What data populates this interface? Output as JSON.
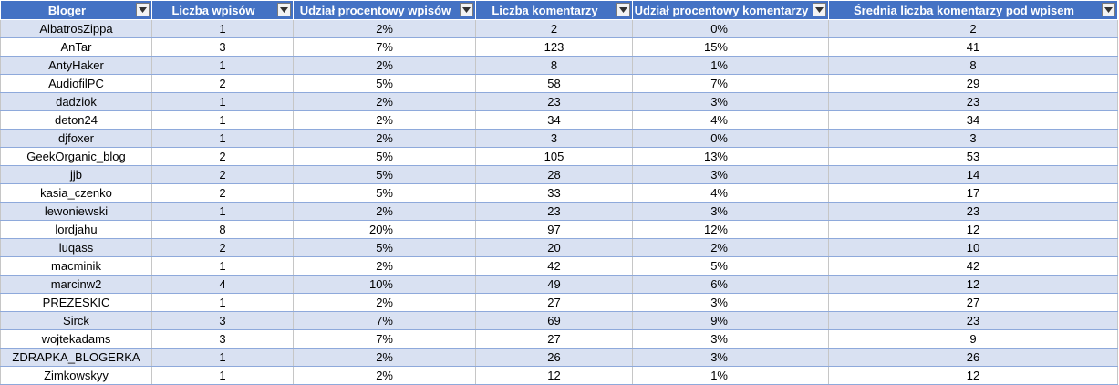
{
  "columns": [
    {
      "label": "Bloger"
    },
    {
      "label": "Liczba wpisów"
    },
    {
      "label": "Udział procentowy wpisów"
    },
    {
      "label": "Liczba komentarzy"
    },
    {
      "label": "Udział procentowy komentarzy"
    },
    {
      "label": "Średnia liczba komentarzy pod wpisem"
    }
  ],
  "icons": {
    "filter": "dropdown-filter-icon"
  },
  "colors": {
    "header_bg": "#4472c4",
    "band_bg": "#d9e1f2",
    "header_text": "#ffffff"
  },
  "rows": [
    [
      "AlbatrosZippa",
      "1",
      "2%",
      "2",
      "0%",
      "2"
    ],
    [
      "AnTar",
      "3",
      "7%",
      "123",
      "15%",
      "41"
    ],
    [
      "AntyHaker",
      "1",
      "2%",
      "8",
      "1%",
      "8"
    ],
    [
      "AudiofilPC",
      "2",
      "5%",
      "58",
      "7%",
      "29"
    ],
    [
      "dadziok",
      "1",
      "2%",
      "23",
      "3%",
      "23"
    ],
    [
      "deton24",
      "1",
      "2%",
      "34",
      "4%",
      "34"
    ],
    [
      "djfoxer",
      "1",
      "2%",
      "3",
      "0%",
      "3"
    ],
    [
      "GeekOrganic_blog",
      "2",
      "5%",
      "105",
      "13%",
      "53"
    ],
    [
      "jjb",
      "2",
      "5%",
      "28",
      "3%",
      "14"
    ],
    [
      "kasia_czenko",
      "2",
      "5%",
      "33",
      "4%",
      "17"
    ],
    [
      "lewoniewski",
      "1",
      "2%",
      "23",
      "3%",
      "23"
    ],
    [
      "lordjahu",
      "8",
      "20%",
      "97",
      "12%",
      "12"
    ],
    [
      "luqass",
      "2",
      "5%",
      "20",
      "2%",
      "10"
    ],
    [
      "macminik",
      "1",
      "2%",
      "42",
      "5%",
      "42"
    ],
    [
      "marcinw2",
      "4",
      "10%",
      "49",
      "6%",
      "12"
    ],
    [
      "PREZESKIC",
      "1",
      "2%",
      "27",
      "3%",
      "27"
    ],
    [
      "Sirck",
      "3",
      "7%",
      "69",
      "9%",
      "23"
    ],
    [
      "wojtekadams",
      "3",
      "7%",
      "27",
      "3%",
      "9"
    ],
    [
      "ZDRAPKA_BLOGERKA",
      "1",
      "2%",
      "26",
      "3%",
      "26"
    ],
    [
      "Zimkowskyy",
      "1",
      "2%",
      "12",
      "1%",
      "12"
    ]
  ]
}
